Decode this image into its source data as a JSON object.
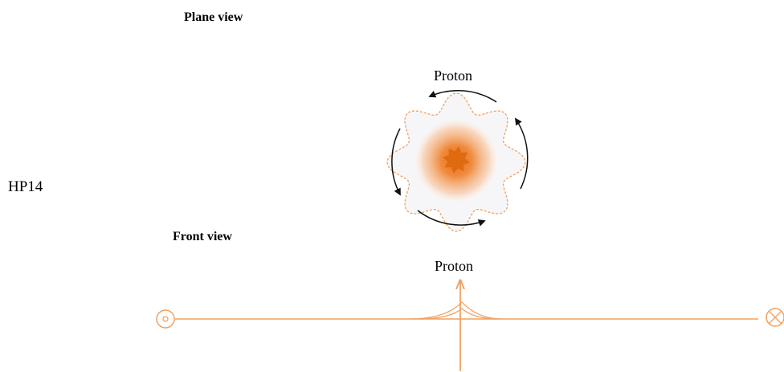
{
  "label": "HP14",
  "plane_view": {
    "title": "Plane view",
    "label": "Proton"
  },
  "front_view": {
    "title": "Front view",
    "label": "Proton"
  }
}
